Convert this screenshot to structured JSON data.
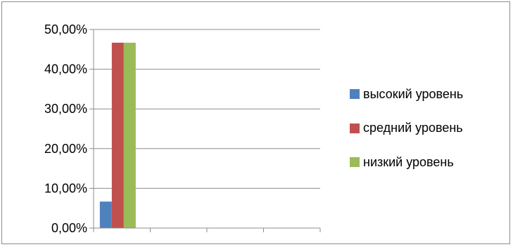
{
  "chart_data": {
    "type": "bar",
    "categories": [
      "",
      "",
      "",
      ""
    ],
    "series": [
      {
        "name": "высокий уровень",
        "color": "#4F81BD",
        "values": [
          6.67,
          null,
          null,
          null
        ]
      },
      {
        "name": "средний уровень",
        "color": "#C0504D",
        "values": [
          46.67,
          null,
          null,
          null
        ]
      },
      {
        "name": "низкий уровень",
        "color": "#9BBB59",
        "values": [
          46.67,
          null,
          null,
          null
        ]
      }
    ],
    "yticks": [
      "0,00%",
      "10,00%",
      "20,00%",
      "30,00%",
      "40,00%",
      "50,00%"
    ],
    "ylim": [
      0,
      50
    ],
    "grid": true,
    "legend_position": "right"
  }
}
